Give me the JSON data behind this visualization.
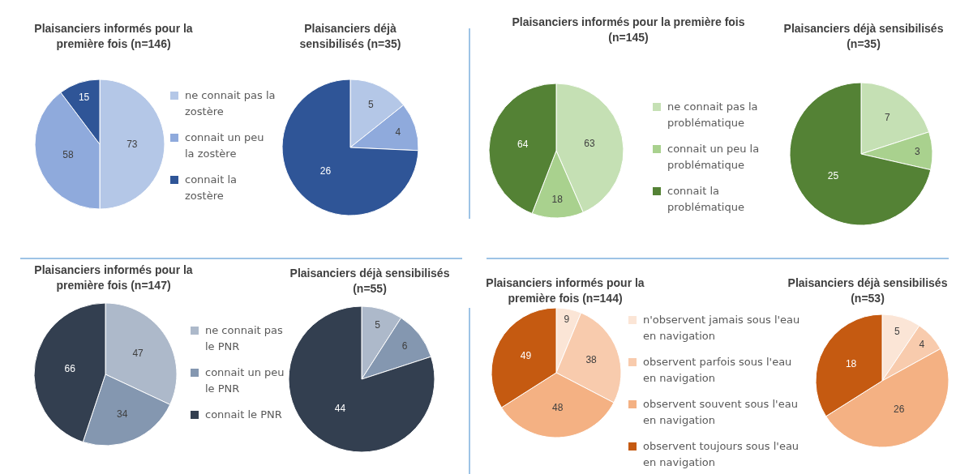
{
  "chart_data": [
    {
      "type": "pie",
      "categories": [
        "ne connait pas la zostère",
        "connait un peu la zostère",
        "connait la zostère"
      ],
      "colors": [
        "#b4c7e7",
        "#8faadc",
        "#2f5597"
      ],
      "data_labels": true,
      "legend": "right",
      "series": [
        {
          "name": "Plaisanciers informés pour la première fois (n=146)",
          "values": [
            73,
            58,
            15
          ]
        },
        {
          "name": "Plaisanciers déjà sensibilisés (n=35)",
          "values": [
            5,
            4,
            26
          ]
        }
      ]
    },
    {
      "type": "pie",
      "categories": [
        "ne connait pas la problématique",
        "connait un peu la problématique",
        "connait la problématique"
      ],
      "colors": [
        "#c5e0b4",
        "#a9d18e",
        "#548235"
      ],
      "data_labels": true,
      "legend": "right",
      "series": [
        {
          "name": "Plaisanciers informés pour la première fois (n=145)",
          "values": [
            63,
            18,
            64
          ]
        },
        {
          "name": "Plaisanciers déjà sensibilisés (n=35)",
          "values": [
            7,
            3,
            25
          ]
        }
      ]
    },
    {
      "type": "pie",
      "categories": [
        "ne connait pas le PNR",
        "connait un peu le PNR",
        "connait le PNR"
      ],
      "colors": [
        "#adb9ca",
        "#8497b0",
        "#333f50"
      ],
      "data_labels": true,
      "legend": "right",
      "series": [
        {
          "name": "Plaisanciers informés pour la première fois (n=147)",
          "values": [
            47,
            34,
            66
          ]
        },
        {
          "name": "Plaisanciers déjà sensibilisés (n=55)",
          "values": [
            5,
            6,
            44
          ]
        }
      ]
    },
    {
      "type": "pie",
      "categories": [
        "n'observent jamais sous l'eau en navigation",
        "observent parfois sous l'eau en navigation",
        "observent souvent sous l'eau en navigation",
        "observent toujours sous l'eau en navigation"
      ],
      "colors": [
        "#fbe5d6",
        "#f8cbad",
        "#f4b183",
        "#c55a11"
      ],
      "data_labels": true,
      "legend": "right",
      "series": [
        {
          "name": "Plaisanciers informés pour la première fois (n=144)",
          "values": [
            9,
            38,
            48,
            49
          ]
        },
        {
          "name": "Plaisanciers déjà sensibilisés (n=53)",
          "values": [
            5,
            4,
            26,
            18
          ]
        }
      ]
    }
  ]
}
